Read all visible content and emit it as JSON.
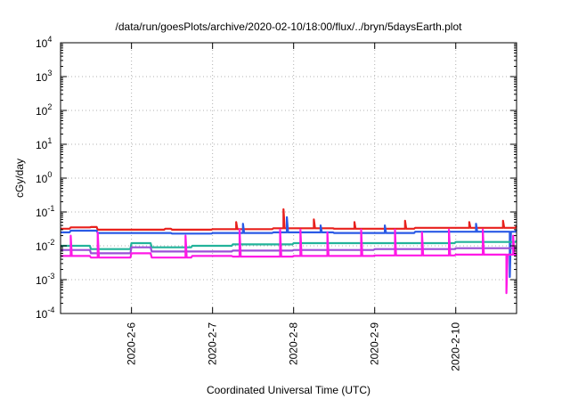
{
  "chart_data": {
    "type": "line",
    "title": "/data/run/goesPlots/archive/2020-02-10/18:00/flux/../bryn/5daysEarth.plot",
    "xlabel": "Coordinated Universal Time (UTC)",
    "ylabel": "cGy/day",
    "yscale": "log",
    "grid": true,
    "x_range": [
      "2020-02-05 03:00",
      "2020-02-10 18:00"
    ],
    "xticks": [
      "2020-2-6",
      "2020-2-7",
      "2020-2-8",
      "2020-2-9",
      "2020-2-10"
    ],
    "xtick_dates": [
      "2020-02-06",
      "2020-02-07",
      "2020-02-08",
      "2020-02-09",
      "2020-02-10"
    ],
    "yticks": [
      {
        "base": "10",
        "exp": "-4"
      },
      {
        "base": "10",
        "exp": "-3"
      },
      {
        "base": "10",
        "exp": "-2"
      },
      {
        "base": "10",
        "exp": "-1"
      },
      {
        "base": "10",
        "exp": "0"
      },
      {
        "base": "10",
        "exp": "1"
      },
      {
        "base": "10",
        "exp": "2"
      },
      {
        "base": "10",
        "exp": "3"
      },
      {
        "base": "10",
        "exp": "4"
      }
    ],
    "ylim": [
      0.0001,
      10000
    ],
    "series": [
      {
        "color": "#e8201c",
        "baseline": [
          [
            "2020-02-05 03:00",
            0.032
          ],
          [
            "2020-02-05 06:00",
            0.035
          ],
          [
            "2020-02-05 12:00",
            0.036
          ],
          [
            "2020-02-05 14:00",
            0.03
          ],
          [
            "2020-02-06 10:00",
            0.032
          ],
          [
            "2020-02-06 12:00",
            0.03
          ],
          [
            "2020-02-07 00:00",
            0.031
          ],
          [
            "2020-02-07 18:00",
            0.033
          ],
          [
            "2020-02-08 12:00",
            0.032
          ],
          [
            "2020-02-09 12:00",
            0.034
          ],
          [
            "2020-02-10 18:00",
            0.038
          ]
        ],
        "spikes": [
          [
            "2020-02-07 07:00",
            0.05
          ],
          [
            "2020-02-07 21:00",
            0.12
          ],
          [
            "2020-02-08 06:00",
            0.06
          ],
          [
            "2020-02-08 18:00",
            0.05
          ],
          [
            "2020-02-09 09:00",
            0.055
          ],
          [
            "2020-02-10 04:00",
            0.05
          ],
          [
            "2020-02-10 14:00",
            0.055
          ]
        ]
      },
      {
        "color": "#2a5ae6",
        "baseline": [
          [
            "2020-02-05 03:00",
            0.025
          ],
          [
            "2020-02-05 06:00",
            0.028
          ],
          [
            "2020-02-05 14:00",
            0.024
          ],
          [
            "2020-02-06 12:00",
            0.023
          ],
          [
            "2020-02-07 00:00",
            0.024
          ],
          [
            "2020-02-07 18:00",
            0.025
          ],
          [
            "2020-02-08 12:00",
            0.024
          ],
          [
            "2020-02-09 12:00",
            0.026
          ],
          [
            "2020-02-10 18:00",
            0.03
          ]
        ],
        "spikes": [
          [
            "2020-02-07 09:00",
            0.045
          ],
          [
            "2020-02-07 22:00",
            0.07
          ],
          [
            "2020-02-08 08:00",
            0.04
          ],
          [
            "2020-02-09 03:00",
            0.04
          ],
          [
            "2020-02-10 06:00",
            0.045
          ],
          [
            "2020-02-10 16:00",
            0.0012
          ]
        ]
      },
      {
        "color": "#22b39a",
        "baseline": [
          [
            "2020-02-05 03:00",
            0.01
          ],
          [
            "2020-02-05 12:00",
            0.008
          ],
          [
            "2020-02-06 00:00",
            0.012
          ],
          [
            "2020-02-06 06:00",
            0.009
          ],
          [
            "2020-02-06 18:00",
            0.01
          ],
          [
            "2020-02-07 06:00",
            0.011
          ],
          [
            "2020-02-08 00:00",
            0.012
          ],
          [
            "2020-02-09 00:00",
            0.012
          ],
          [
            "2020-02-10 00:00",
            0.013
          ],
          [
            "2020-02-10 18:00",
            0.014
          ]
        ],
        "spikes": []
      },
      {
        "color": "#9a4fd6",
        "baseline": [
          [
            "2020-02-05 03:00",
            0.0075
          ],
          [
            "2020-02-05 12:00",
            0.006
          ],
          [
            "2020-02-06 00:00",
            0.009
          ],
          [
            "2020-02-06 06:00",
            0.0068
          ],
          [
            "2020-02-07 06:00",
            0.0072
          ],
          [
            "2020-02-08 00:00",
            0.0075
          ],
          [
            "2020-02-09 00:00",
            0.008
          ],
          [
            "2020-02-10 00:00",
            0.0085
          ],
          [
            "2020-02-10 18:00",
            0.009
          ]
        ],
        "spikes": []
      },
      {
        "color": "#ff18e6",
        "baseline": [
          [
            "2020-02-05 03:00",
            0.005
          ],
          [
            "2020-02-05 12:00",
            0.0045
          ],
          [
            "2020-02-06 00:00",
            0.006
          ],
          [
            "2020-02-06 06:00",
            0.0045
          ],
          [
            "2020-02-06 18:00",
            0.005
          ],
          [
            "2020-02-07 06:00",
            0.0048
          ],
          [
            "2020-02-08 00:00",
            0.005
          ],
          [
            "2020-02-09 00:00",
            0.0052
          ],
          [
            "2020-02-10 00:00",
            0.0055
          ],
          [
            "2020-02-10 18:00",
            0.0055
          ]
        ],
        "spikes": [
          [
            "2020-02-05 06:00",
            0.02
          ],
          [
            "2020-02-05 14:00",
            0.025
          ],
          [
            "2020-02-06 16:00",
            0.02
          ],
          [
            "2020-02-07 08:00",
            0.03
          ],
          [
            "2020-02-07 20:00",
            0.03
          ],
          [
            "2020-02-08 02:00",
            0.03
          ],
          [
            "2020-02-08 10:00",
            0.025
          ],
          [
            "2020-02-08 20:00",
            0.03
          ],
          [
            "2020-02-09 06:00",
            0.03
          ],
          [
            "2020-02-09 14:00",
            0.025
          ],
          [
            "2020-02-09 22:00",
            0.03
          ],
          [
            "2020-02-10 08:00",
            0.03
          ],
          [
            "2020-02-10 15:00",
            0.0004
          ],
          [
            "2020-02-10 17:00",
            0.02
          ]
        ]
      }
    ]
  }
}
